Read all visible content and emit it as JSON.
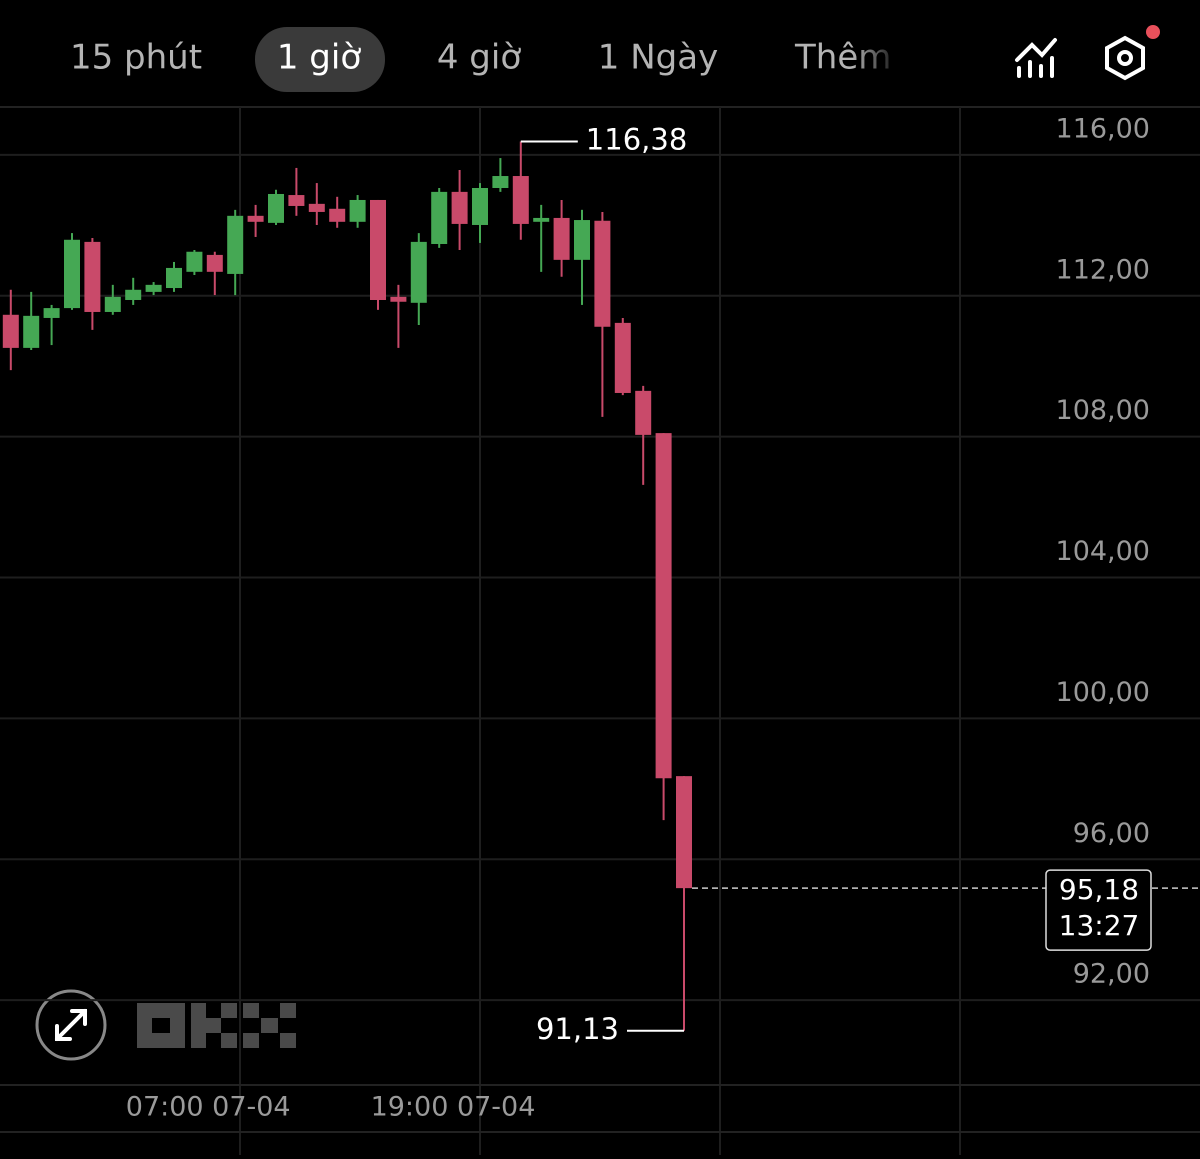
{
  "tabs": [
    "15 phút",
    "1 giờ",
    "4 giờ",
    "1 Ngày",
    "Thêm"
  ],
  "chart_data": {
    "type": "candlestick",
    "categories": [
      null,
      null,
      null,
      null,
      null,
      null,
      null,
      null,
      null,
      null,
      null,
      "07:00 07-04",
      null,
      null,
      null,
      null,
      null,
      null,
      null,
      null,
      null,
      null,
      null,
      "19:00 07-04",
      null,
      null,
      null,
      null,
      null,
      null,
      null,
      null,
      null,
      null
    ],
    "open": [
      111.46,
      110.52,
      111.37,
      111.65,
      113.53,
      111.54,
      111.88,
      112.11,
      112.22,
      112.68,
      113.16,
      112.62,
      114.27,
      114.07,
      114.86,
      114.61,
      114.47,
      114.1,
      114.72,
      111.97,
      111.8,
      113.47,
      114.95,
      114.01,
      115.06,
      115.4,
      114.1,
      114.21,
      113.02,
      114.13,
      111.23,
      109.3,
      108.1,
      98.36
    ],
    "high": [
      112.17,
      112.11,
      111.74,
      113.78,
      113.64,
      112.31,
      112.51,
      112.39,
      112.96,
      113.3,
      113.25,
      114.44,
      114.58,
      115.01,
      115.63,
      115.2,
      114.81,
      114.86,
      114.72,
      112.31,
      113.78,
      115.06,
      115.57,
      115.2,
      115.91,
      116.38,
      114.58,
      114.72,
      114.44,
      114.38,
      111.37,
      109.44,
      108.1,
      98.36
    ],
    "low": [
      109.89,
      110.46,
      110.6,
      111.6,
      111.03,
      111.46,
      111.74,
      112.02,
      112.11,
      112.59,
      112.02,
      112.02,
      113.67,
      114.01,
      114.27,
      114.01,
      113.93,
      113.93,
      111.6,
      110.52,
      111.17,
      113.36,
      113.3,
      113.5,
      114.95,
      113.59,
      112.68,
      112.54,
      111.74,
      108.56,
      109.18,
      106.63,
      97.11,
      91.13
    ],
    "close": [
      110.52,
      111.43,
      111.65,
      113.59,
      111.54,
      111.97,
      112.17,
      112.31,
      112.79,
      113.25,
      112.68,
      114.27,
      114.1,
      114.89,
      114.55,
      114.38,
      114.1,
      114.72,
      111.88,
      111.83,
      113.53,
      114.95,
      114.04,
      115.06,
      115.4,
      114.04,
      114.21,
      113.02,
      114.15,
      111.12,
      109.24,
      108.05,
      98.3,
      95.18
    ],
    "up_color": "#45a854",
    "down_color": "#c94a6a",
    "ylim": [
      89.59,
      117.36
    ],
    "yticks": [
      {
        "value": 116,
        "label": "116,00"
      },
      {
        "value": 112,
        "label": "112,00"
      },
      {
        "value": 108,
        "label": "108,00"
      },
      {
        "value": 104,
        "label": "104,00"
      },
      {
        "value": 100,
        "label": "100,00"
      },
      {
        "value": 96,
        "label": "96,00"
      },
      {
        "value": 92,
        "label": "92,00"
      }
    ],
    "grid": true,
    "high_label": {
      "value": 116.38,
      "label": "116,38"
    },
    "low_label": {
      "value": 91.13,
      "label": "91,13"
    },
    "last_price": {
      "value": 95.18,
      "label": "95,18",
      "countdown": "13:27"
    }
  }
}
